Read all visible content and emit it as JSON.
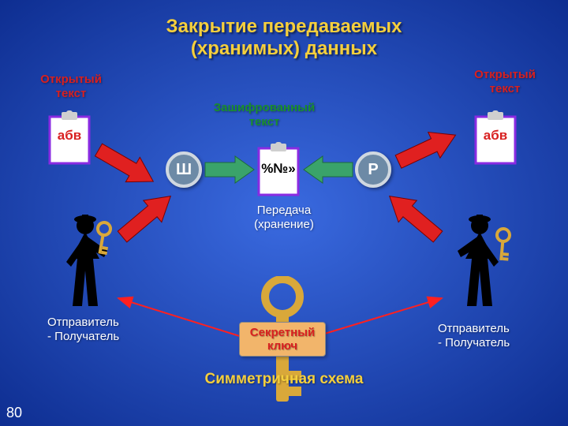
{
  "background": {
    "grad_outer": "#0b2a8c",
    "grad_inner": "#3a6ae0"
  },
  "title": {
    "line1": "Закрытие передаваемых",
    "line2": "(хранимых) данных",
    "color": "#f5cf3c",
    "fontsize": 24
  },
  "labels": {
    "plaintext_left": "Открытый\nтекст",
    "plaintext_right": "Открытый\nтекст",
    "plaintext_color": "#d82020",
    "plaintext_fontsize": 15,
    "ciphertext": "Зашифрованный\nтекст",
    "ciphertext_color": "#1a8f2e",
    "ciphertext_fontsize": 15,
    "transfer": "Передача\n(хранение)",
    "transfer_color": "#ffffff",
    "transfer_fontsize": 15,
    "sender_left": "Отправитель\n- Получатель",
    "sender_right": "Отправитель\n- Получатель",
    "sender_color": "#ffffff",
    "sender_fontsize": 15,
    "secret_key": "Секретный\nключ",
    "secret_key_color": "#d82020",
    "secret_box_bg": "#f2b56b",
    "secret_box_border": "#888",
    "secret_fontsize": 15,
    "scheme": "Симметричная схема",
    "scheme_color": "#f5cf3c",
    "scheme_fontsize": 19,
    "page": "80",
    "page_color": "#ffffff",
    "page_fontsize": 18
  },
  "clipboards": {
    "border_color": "#8a2be2",
    "bg": "#ffffff",
    "clip_color": "#cfcfcf",
    "width": 56,
    "height": 70,
    "left_text": "абв",
    "center_text": "%№»",
    "right_text": "абв",
    "text_color_side": "#d82020",
    "text_color_center": "#000000",
    "text_fontsize": 17
  },
  "nodes": {
    "encrypt": "Ш",
    "decrypt": "Р",
    "bg": "#6d8aa6",
    "border": "#d0d8e0",
    "text_color": "#ffffff",
    "size": 46,
    "fontsize": 20
  },
  "arrows": {
    "red_fill": "#e02020",
    "red_stroke": "#7a0000",
    "green_fill": "#3aa36a",
    "green_stroke": "#1e6b3c",
    "thin_red": "#ff2020"
  },
  "figures": {
    "body_color": "#000000",
    "key_color": "#d9a83a",
    "key_stroke": "#7a5a10",
    "big_key_color": "#d9a83a"
  }
}
